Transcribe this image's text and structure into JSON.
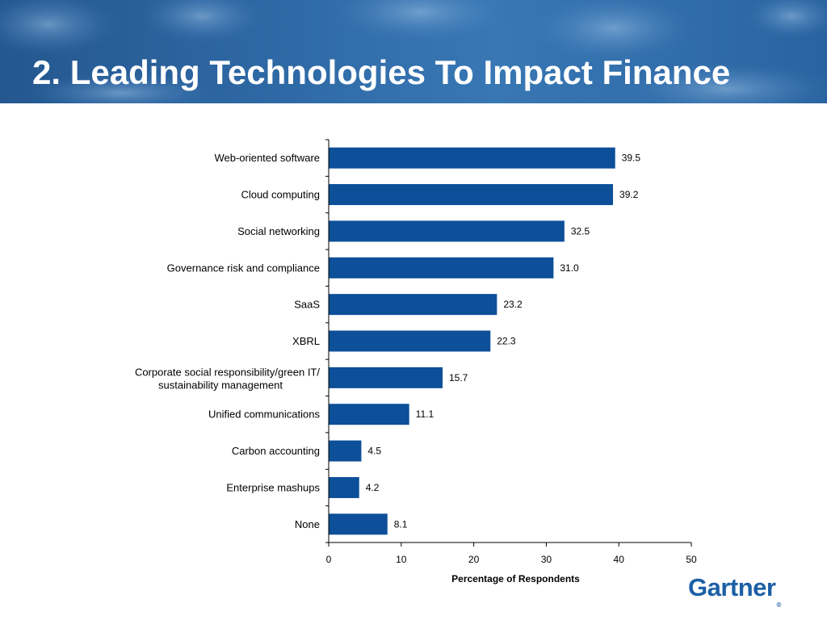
{
  "slide": {
    "title": "2. Leading Technologies To Impact Finance"
  },
  "logo": {
    "text": "Gartner",
    "registered": "®"
  },
  "colors": {
    "header": "#2f6aa6",
    "bar": "#0d4f99",
    "title_text": "#ffffff",
    "logo": "#1d5fa6"
  },
  "chart_data": {
    "type": "bar",
    "orientation": "horizontal",
    "title": "",
    "xlabel": "Percentage of Respondents",
    "ylabel": "",
    "xlim": [
      0,
      50
    ],
    "xticks": [
      0,
      10,
      20,
      30,
      40,
      50
    ],
    "grid": false,
    "legend": "none",
    "categories": [
      [
        "Web-oriented software"
      ],
      [
        "Cloud computing"
      ],
      [
        "Social networking"
      ],
      [
        "Governance risk and compliance"
      ],
      [
        "SaaS"
      ],
      [
        "XBRL"
      ],
      [
        "Corporate social responsibility/green IT/",
        "sustainability management"
      ],
      [
        "Unified communications"
      ],
      [
        "Carbon accounting"
      ],
      [
        "Enterprise mashups"
      ],
      [
        "None"
      ]
    ],
    "values": [
      39.5,
      39.2,
      32.5,
      31.0,
      23.2,
      22.3,
      15.7,
      11.1,
      4.5,
      4.2,
      8.1
    ],
    "value_labels": [
      "39.5",
      "39.2",
      "32.5",
      "31.0",
      "23.2",
      "22.3",
      "15.7",
      "11.1",
      "4.5",
      "4.2",
      "8.1"
    ]
  }
}
